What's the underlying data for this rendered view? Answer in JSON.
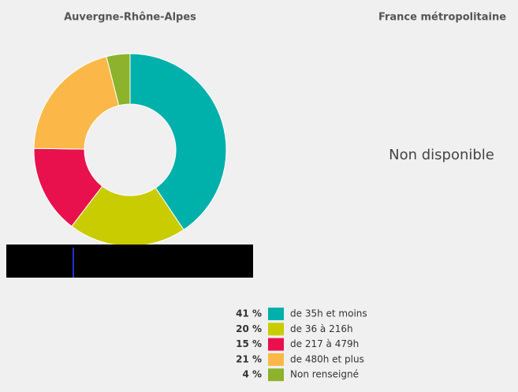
{
  "chart_data": {
    "type": "donut",
    "title": "Auvergne-Rhône-Alpes",
    "categories": [
      "de 35h et moins",
      "de 36 à 216h",
      "de 217 à 479h",
      "de 480h et plus",
      "Non renseigné"
    ],
    "values": [
      41,
      20,
      15,
      21,
      4
    ],
    "value_labels": [
      "41 %",
      "20 %",
      "15 %",
      "21 %",
      "4 %"
    ],
    "colors": [
      "#00b0ab",
      "#c8cc00",
      "#e8114e",
      "#fbb848",
      "#8cb32b"
    ]
  },
  "panel2": {
    "title": "France métropolitaine",
    "message": "Non disponible"
  }
}
